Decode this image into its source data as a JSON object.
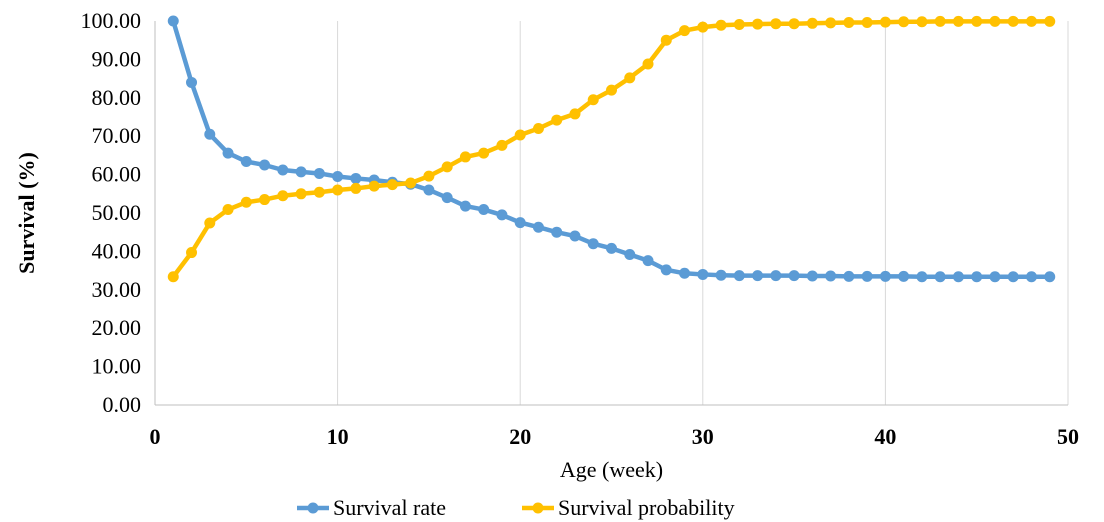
{
  "chart_data": {
    "type": "line",
    "xlabel": "Age (week)",
    "ylabel": "Survival (%)",
    "xlim": [
      0,
      50
    ],
    "ylim": [
      0,
      100
    ],
    "x_ticks": [
      "0",
      "10",
      "20",
      "30",
      "40",
      "50"
    ],
    "y_ticks": [
      "0.00",
      "10.00",
      "20.00",
      "30.00",
      "40.00",
      "50.00",
      "60.00",
      "70.00",
      "80.00",
      "90.00",
      "100.00"
    ],
    "grid": "vertical",
    "legend_position": "bottom",
    "x": [
      1,
      2,
      3,
      4,
      5,
      6,
      7,
      8,
      9,
      10,
      11,
      12,
      13,
      14,
      15,
      16,
      17,
      18,
      19,
      20,
      21,
      22,
      23,
      24,
      25,
      26,
      27,
      28,
      29,
      30,
      31,
      32,
      33,
      34,
      35,
      36,
      37,
      38,
      39,
      40,
      41,
      42,
      43,
      44,
      45,
      46,
      47,
      48,
      49
    ],
    "series": [
      {
        "name": "Survival rate",
        "color": "#5B9BD5",
        "values": [
          100.0,
          84.0,
          70.5,
          65.6,
          63.4,
          62.5,
          61.2,
          60.7,
          60.3,
          59.5,
          59.0,
          58.6,
          58.0,
          57.5,
          56.0,
          54.0,
          51.8,
          50.9,
          49.5,
          47.5,
          46.3,
          45.0,
          44.0,
          42.0,
          40.8,
          39.2,
          37.6,
          35.2,
          34.3,
          34.0,
          33.8,
          33.7,
          33.7,
          33.7,
          33.7,
          33.6,
          33.6,
          33.5,
          33.5,
          33.5,
          33.5,
          33.4,
          33.4,
          33.4,
          33.4,
          33.4,
          33.4,
          33.4,
          33.4
        ]
      },
      {
        "name": "Survival probability",
        "color": "#FFC000",
        "values": [
          33.4,
          39.7,
          47.4,
          50.9,
          52.8,
          53.5,
          54.5,
          55.0,
          55.4,
          56.0,
          56.4,
          57.0,
          57.4,
          57.8,
          59.6,
          62.0,
          64.6,
          65.6,
          67.6,
          70.3,
          72.0,
          74.2,
          75.8,
          79.5,
          82.0,
          85.2,
          88.8,
          95.0,
          97.5,
          98.4,
          98.9,
          99.1,
          99.2,
          99.3,
          99.3,
          99.4,
          99.5,
          99.6,
          99.6,
          99.7,
          99.8,
          99.8,
          99.9,
          99.9,
          99.9,
          99.9,
          99.9,
          99.9,
          99.9
        ]
      }
    ]
  }
}
